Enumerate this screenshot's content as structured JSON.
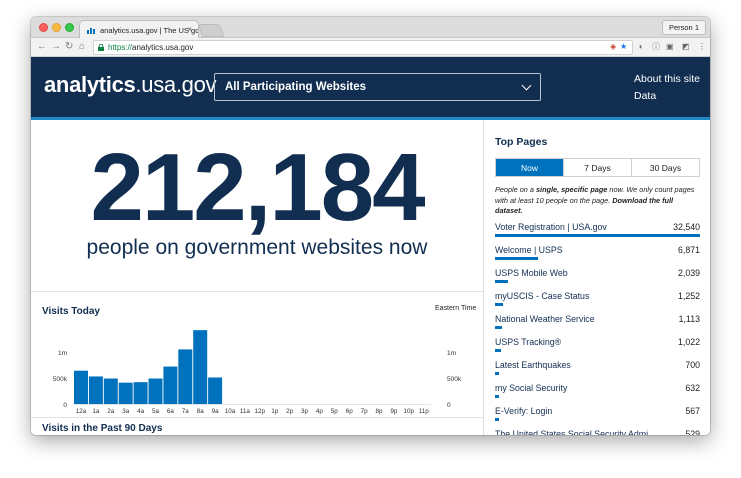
{
  "browser": {
    "tab_title": "analytics.usa.gov | The US go",
    "tab_close": "×",
    "person_label": "Person 1",
    "url_scheme": "https://",
    "url_host": "analytics.usa.gov",
    "nav": {
      "back": "←",
      "forward": "→",
      "reload": "↻",
      "home": "⌂"
    },
    "extension_icons": [
      "shield-icon",
      "star-icon",
      "pocket-icon",
      "info-icon",
      "camera-icon",
      "puzzle-icon",
      "menu-dots-icon"
    ]
  },
  "header": {
    "logo_bold": "analytics",
    "logo_rest": ".usa.gov",
    "site_selector": "All Participating Websites",
    "links": [
      "About this site",
      "Data"
    ]
  },
  "realtime": {
    "count": "212,184",
    "caption": "people on government websites now"
  },
  "visits_today": {
    "title": "Visits Today",
    "timezone": "Eastern Time"
  },
  "visits_90": {
    "title": "Visits in the Past 90 Days"
  },
  "chart_data": {
    "type": "bar",
    "title": "Visits Today",
    "categories": [
      "12a",
      "1a",
      "2a",
      "3a",
      "4a",
      "5a",
      "6a",
      "7a",
      "8a",
      "9a",
      "10a",
      "11a",
      "12p",
      "1p",
      "2p",
      "3p",
      "4p",
      "5p",
      "6p",
      "7p",
      "8p",
      "9p",
      "10p",
      "11p"
    ],
    "values": [
      640000,
      530000,
      490000,
      410000,
      420000,
      490000,
      720000,
      1050000,
      1420000,
      510000,
      0,
      0,
      0,
      0,
      0,
      0,
      0,
      0,
      0,
      0,
      0,
      0,
      0,
      0
    ],
    "ylim": [
      0,
      1500000
    ],
    "yticks": [
      0,
      500000,
      1000000
    ],
    "ytick_labels": [
      "0",
      "500k",
      "1m"
    ],
    "bar_color": "#0071bc"
  },
  "top_pages": {
    "title": "Top Pages",
    "tabs": [
      "Now",
      "7 Days",
      "30 Days"
    ],
    "active_tab": "Now",
    "desc_prefix": "People on a ",
    "desc_bold": "single, specific page",
    "desc_middle": " now. We only count pages with at least 10 people on the page. ",
    "desc_link": "Download the full dataset.",
    "max_value": 32540,
    "items": [
      {
        "title": "Voter Registration | USA.gov",
        "value": "32,540",
        "n": 32540
      },
      {
        "title": "Welcome | USPS",
        "value": "6,871",
        "n": 6871
      },
      {
        "title": "USPS Mobile Web",
        "value": "2,039",
        "n": 2039
      },
      {
        "title": "myUSCIS - Case Status",
        "value": "1,252",
        "n": 1252
      },
      {
        "title": "National Weather Service",
        "value": "1,113",
        "n": 1113
      },
      {
        "title": "USPS Tracking®",
        "value": "1,022",
        "n": 1022
      },
      {
        "title": "Latest Earthquakes",
        "value": "700",
        "n": 700
      },
      {
        "title": "my Social Security",
        "value": "632",
        "n": 632
      },
      {
        "title": "E-Verify: Login",
        "value": "567",
        "n": 567
      },
      {
        "title": "The United States Social Security Admi",
        "value": "529",
        "n": 529
      }
    ]
  }
}
